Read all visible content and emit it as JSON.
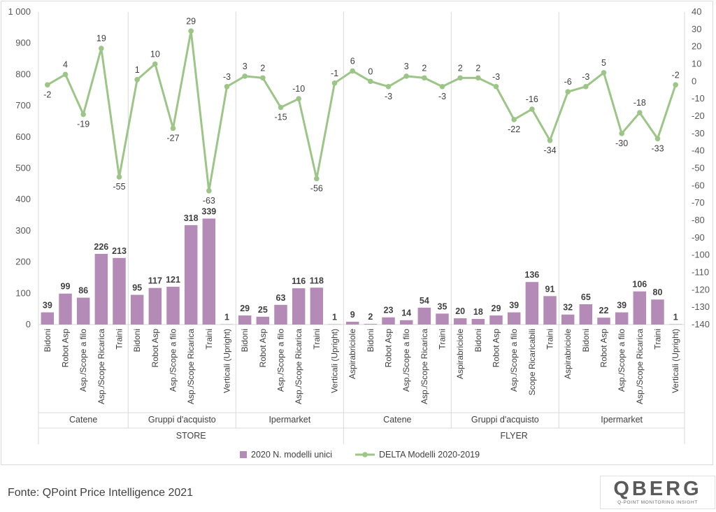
{
  "chart_data": {
    "type": "bar+line",
    "title": "",
    "categories": [
      "Bidoni",
      "Robot Asp",
      "Asp./Scope a filo",
      "Asp./Scope Ricarica",
      "Traini",
      "Bidoni",
      "Robot Asp",
      "Asp./Scope a filo",
      "Asp./Scope Ricarica",
      "Traini",
      "Verticali (Upright)",
      "Bidoni",
      "Robot Asp",
      "Asp./Scope a filo",
      "Asp./Scope Ricarica",
      "Traini",
      "Verticali (Upright)",
      "Aspirabriciole",
      "Bidoni",
      "Robot Asp",
      "Asp./Scope a filo",
      "Asp./Scope Ricarica",
      "Traini",
      "Aspirabriciole",
      "Bidoni",
      "Robot Asp",
      "Asp./Scope a filo",
      "Scope Ricaricabili",
      "Traini",
      "Aspirabriciole",
      "Bidoni",
      "Robot Asp",
      "Asp./Scope a filo",
      "Asp./Scope Ricarica",
      "Traini",
      "Verticali (Upright)"
    ],
    "groups": [
      {
        "name": "Catene",
        "count": 5
      },
      {
        "name": "Gruppi d'acquisto",
        "count": 6
      },
      {
        "name": "Ipermarket",
        "count": 6
      },
      {
        "name": "Catene",
        "count": 6
      },
      {
        "name": "Gruppi d'acquisto",
        "count": 6
      },
      {
        "name": "Ipermarket",
        "count": 7
      }
    ],
    "super_groups": [
      {
        "name": "STORE",
        "count": 17
      },
      {
        "name": "FLYER",
        "count": 19
      }
    ],
    "series": [
      {
        "name": "2020 N. modelli unici",
        "kind": "bar",
        "axis": "left",
        "color": "#b48bb6",
        "values": [
          39,
          99,
          86,
          226,
          213,
          95,
          117,
          121,
          318,
          339,
          1,
          29,
          25,
          63,
          116,
          118,
          1,
          9,
          2,
          23,
          14,
          54,
          35,
          20,
          18,
          29,
          39,
          136,
          91,
          32,
          65,
          22,
          39,
          106,
          80,
          1
        ]
      },
      {
        "name": "DELTA Modelli 2020-2019",
        "kind": "line",
        "axis": "right",
        "color": "#9cc587",
        "values": [
          -2,
          4,
          -19,
          19,
          -55,
          1,
          10,
          -27,
          29,
          -63,
          -3,
          3,
          2,
          -15,
          -10,
          -56,
          -1,
          6,
          0,
          -3,
          3,
          2,
          -3,
          2,
          2,
          -3,
          -22,
          -16,
          -34,
          -6,
          -3,
          5,
          -30,
          -18,
          -33,
          -2
        ]
      }
    ],
    "y_left": {
      "ylim": [
        0,
        1000
      ],
      "ticks": [
        0,
        100,
        200,
        300,
        400,
        500,
        600,
        700,
        800,
        900,
        1000
      ],
      "tick_labels": [
        "0",
        "100",
        "200",
        "300",
        "400",
        "500",
        "600",
        "700",
        "800",
        "900",
        "1 000"
      ]
    },
    "y_right": {
      "ylim": [
        -140,
        40
      ],
      "ticks": [
        40,
        30,
        20,
        10,
        0,
        -10,
        -20,
        -30,
        -40,
        -50,
        -60,
        -70,
        -80,
        -90,
        -100,
        -110,
        -120,
        -130,
        -140
      ],
      "tick_labels": [
        "40",
        "30",
        "20",
        "10",
        "0",
        "-10",
        "-20",
        "-30",
        "-40",
        "-50",
        "-60",
        "-70",
        "-80",
        "-90",
        "-100",
        "-110",
        "-120",
        "-130",
        "-140"
      ]
    },
    "grid": "vertical",
    "legend": "bottom-center"
  },
  "source_note": "Fonte: QPoint Price Intelligence 2021",
  "logo": {
    "word": "QBERG",
    "subtitle": "Q-Point Monitoring Insight"
  }
}
